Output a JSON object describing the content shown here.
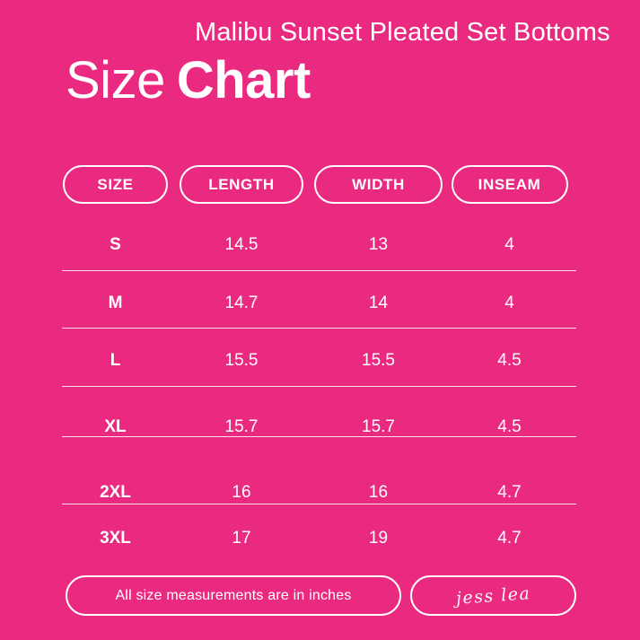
{
  "colors": {
    "background": "#EA2A80",
    "foreground": "#FFFFFF"
  },
  "header": {
    "product_title": "Malibu Sunset Pleated Set Bottoms",
    "title_regular": "Size",
    "title_bold": "Chart"
  },
  "chart_data": {
    "type": "table",
    "title": "Size Chart",
    "columns": [
      "SIZE",
      "LENGTH",
      "WIDTH",
      "INSEAM"
    ],
    "rows": [
      {
        "size": "S",
        "length": "14.5",
        "width": "13",
        "inseam": "4"
      },
      {
        "size": "M",
        "length": "14.7",
        "width": "14",
        "inseam": "4"
      },
      {
        "size": "L",
        "length": "15.5",
        "width": "15.5",
        "inseam": "4.5"
      },
      {
        "size": "XL",
        "length": "15.7",
        "width": "15.7",
        "inseam": "4.5"
      },
      {
        "size": "2XL",
        "length": "16",
        "width": "16",
        "inseam": "4.7"
      },
      {
        "size": "3XL",
        "length": "17",
        "width": "19",
        "inseam": "4.7"
      }
    ],
    "units": "inches"
  },
  "footer": {
    "note": "All size measurements are in inches",
    "signature": "jess lea"
  }
}
